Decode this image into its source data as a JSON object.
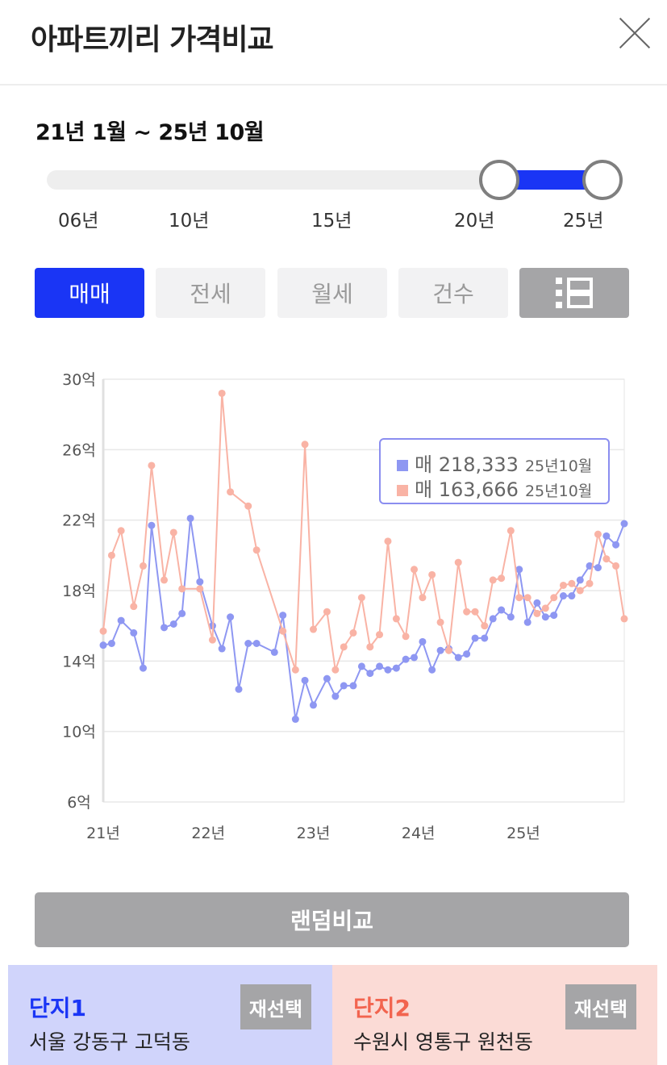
{
  "header": {
    "title": "아파트끼리 가격비교",
    "close_icon": "close-icon"
  },
  "range": {
    "label": "21년 1월 ~ 25년 10월",
    "selected_start_year": 20,
    "selected_end_year": 25,
    "ticks": [
      "06년",
      "10년",
      "15년",
      "20년",
      "25년"
    ]
  },
  "tabs": [
    {
      "label": "매매",
      "active": true
    },
    {
      "label": "전세",
      "active": false
    },
    {
      "label": "월세",
      "active": false
    },
    {
      "label": "건수",
      "active": false
    },
    {
      "label": "",
      "icon": "list-view-icon",
      "active": false
    }
  ],
  "legend": {
    "rows": [
      {
        "value": "매 218,333",
        "date": "25년10월",
        "color": "#8e97f2"
      },
      {
        "value": "매 163,666",
        "date": "25년10월",
        "color": "#f9b3a5"
      }
    ]
  },
  "chart_data": {
    "type": "line",
    "ylim": [
      6,
      30
    ],
    "xlim": [
      2021.0,
      2025.8
    ],
    "y_ticks": [
      30,
      26,
      22,
      18,
      14,
      10,
      6
    ],
    "y_tick_labels": [
      "30억",
      "26억",
      "22억",
      "18억",
      "14억",
      "10억",
      "6억"
    ],
    "x_ticks": [
      2021,
      2022,
      2023,
      2024,
      2025
    ],
    "x_tick_labels": [
      "21년",
      "22년",
      "23년",
      "24년",
      "25년"
    ],
    "grid": true,
    "legend_position": "top-right",
    "series": [
      {
        "color": "#8e97f2",
        "points": [
          [
            2021.0,
            14.9
          ],
          [
            2021.08,
            15.0
          ],
          [
            2021.17,
            16.3
          ],
          [
            2021.29,
            15.6
          ],
          [
            2021.38,
            13.6
          ],
          [
            2021.46,
            21.7
          ],
          [
            2021.58,
            15.9
          ],
          [
            2021.67,
            16.1
          ],
          [
            2021.75,
            16.7
          ],
          [
            2021.83,
            22.1
          ],
          [
            2021.92,
            18.5
          ],
          [
            2022.04,
            16.0
          ],
          [
            2022.13,
            14.7
          ],
          [
            2022.21,
            16.5
          ],
          [
            2022.29,
            12.4
          ],
          [
            2022.38,
            15.0
          ],
          [
            2022.46,
            15.0
          ],
          [
            2022.63,
            14.5
          ],
          [
            2022.71,
            16.6
          ],
          [
            2022.83,
            10.7
          ],
          [
            2022.92,
            12.9
          ],
          [
            2023.0,
            11.5
          ],
          [
            2023.13,
            13.0
          ],
          [
            2023.21,
            12.0
          ],
          [
            2023.29,
            12.6
          ],
          [
            2023.38,
            12.6
          ],
          [
            2023.46,
            13.7
          ],
          [
            2023.54,
            13.3
          ],
          [
            2023.63,
            13.7
          ],
          [
            2023.71,
            13.5
          ],
          [
            2023.79,
            13.6
          ],
          [
            2023.88,
            14.1
          ],
          [
            2023.96,
            14.2
          ],
          [
            2024.04,
            15.1
          ],
          [
            2024.13,
            13.5
          ],
          [
            2024.21,
            14.6
          ],
          [
            2024.29,
            14.7
          ],
          [
            2024.38,
            14.2
          ],
          [
            2024.46,
            14.4
          ],
          [
            2024.54,
            15.3
          ],
          [
            2024.63,
            15.3
          ],
          [
            2024.71,
            16.4
          ],
          [
            2024.79,
            16.9
          ],
          [
            2024.88,
            16.5
          ],
          [
            2024.96,
            19.2
          ],
          [
            2025.04,
            16.2
          ],
          [
            2025.13,
            17.3
          ],
          [
            2025.21,
            16.5
          ],
          [
            2025.29,
            16.6
          ],
          [
            2025.38,
            17.7
          ],
          [
            2025.46,
            17.7
          ],
          [
            2025.54,
            18.6
          ],
          [
            2025.63,
            19.4
          ],
          [
            2025.71,
            19.3
          ],
          [
            2025.79,
            21.1
          ],
          [
            2025.88,
            20.6
          ],
          [
            2025.96,
            21.8
          ]
        ]
      },
      {
        "color": "#f9b3a5",
        "points": [
          [
            2021.0,
            15.7
          ],
          [
            2021.08,
            20.0
          ],
          [
            2021.17,
            21.4
          ],
          [
            2021.29,
            17.1
          ],
          [
            2021.38,
            19.4
          ],
          [
            2021.46,
            25.1
          ],
          [
            2021.58,
            18.6
          ],
          [
            2021.67,
            21.3
          ],
          [
            2021.75,
            18.1
          ],
          [
            2021.92,
            18.1
          ],
          [
            2022.04,
            15.2
          ],
          [
            2022.13,
            29.2
          ],
          [
            2022.21,
            23.6
          ],
          [
            2022.38,
            22.8
          ],
          [
            2022.46,
            20.3
          ],
          [
            2022.71,
            15.7
          ],
          [
            2022.83,
            13.5
          ],
          [
            2022.92,
            26.3
          ],
          [
            2023.0,
            15.8
          ],
          [
            2023.13,
            16.8
          ],
          [
            2023.21,
            13.5
          ],
          [
            2023.29,
            14.8
          ],
          [
            2023.38,
            15.6
          ],
          [
            2023.46,
            17.6
          ],
          [
            2023.54,
            14.8
          ],
          [
            2023.63,
            15.5
          ],
          [
            2023.71,
            20.8
          ],
          [
            2023.79,
            16.4
          ],
          [
            2023.88,
            15.4
          ],
          [
            2023.96,
            19.2
          ],
          [
            2024.04,
            17.6
          ],
          [
            2024.13,
            18.9
          ],
          [
            2024.21,
            16.2
          ],
          [
            2024.29,
            14.6
          ],
          [
            2024.38,
            19.6
          ],
          [
            2024.46,
            16.8
          ],
          [
            2024.54,
            16.8
          ],
          [
            2024.63,
            16.0
          ],
          [
            2024.71,
            18.6
          ],
          [
            2024.79,
            18.7
          ],
          [
            2024.88,
            21.4
          ],
          [
            2024.96,
            17.6
          ],
          [
            2025.04,
            17.6
          ],
          [
            2025.13,
            16.7
          ],
          [
            2025.21,
            17.0
          ],
          [
            2025.29,
            17.6
          ],
          [
            2025.38,
            18.3
          ],
          [
            2025.46,
            18.4
          ],
          [
            2025.54,
            18.0
          ],
          [
            2025.63,
            18.4
          ],
          [
            2025.71,
            21.2
          ],
          [
            2025.79,
            19.8
          ],
          [
            2025.88,
            19.4
          ],
          [
            2025.96,
            16.4
          ]
        ]
      }
    ]
  },
  "random_compare": {
    "label": "랜덤비교"
  },
  "complex1": {
    "label": "단지1",
    "location": "서울 강동구 고덕동",
    "reselect": "재선택",
    "color": "#1a35f5"
  },
  "complex2": {
    "label": "단지2",
    "location": "수원시 영통구 원천동",
    "reselect": "재선택",
    "color": "#f2644f"
  }
}
